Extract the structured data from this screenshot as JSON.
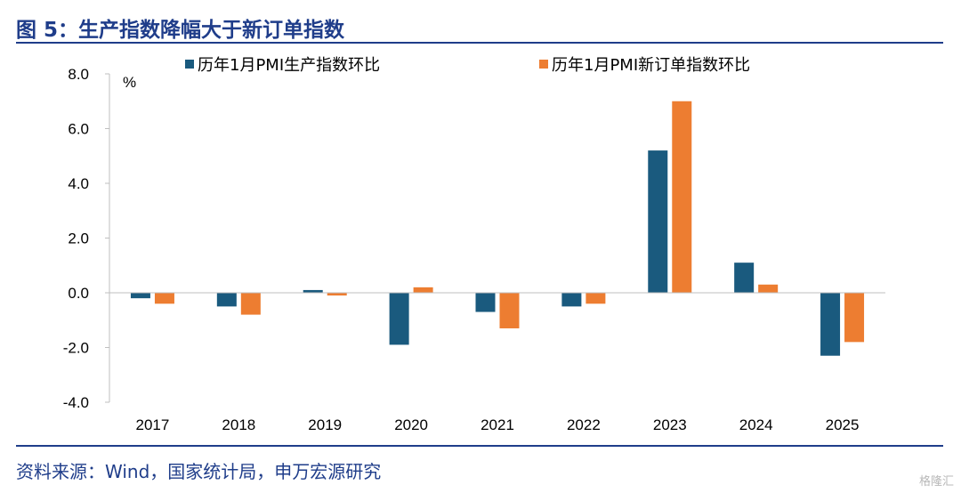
{
  "header": {
    "title": "图 5：生产指数降幅大于新订单指数"
  },
  "footer": {
    "source": "资料来源：Wind，国家统计局，申万宏源研究",
    "watermark": "格隆汇"
  },
  "chart_data": {
    "type": "bar",
    "categories": [
      "2017",
      "2018",
      "2019",
      "2020",
      "2021",
      "2022",
      "2023",
      "2024",
      "2025"
    ],
    "series": [
      {
        "name": "历年1月PMI生产指数环比",
        "color": "#1a5a7e",
        "values": [
          -0.2,
          -0.5,
          0.1,
          -1.9,
          -0.7,
          -0.5,
          5.2,
          1.1,
          -2.3
        ]
      },
      {
        "name": "历年1月PMI新订单指数环比",
        "color": "#ed7d31",
        "values": [
          -0.4,
          -0.8,
          -0.1,
          0.2,
          -1.3,
          -0.4,
          7.0,
          0.3,
          -1.8
        ]
      }
    ],
    "yunit": "%",
    "ylim": [
      -4.0,
      8.0
    ],
    "yticks": [
      "8.0",
      "6.0",
      "4.0",
      "2.0",
      "0.0",
      "-2.0",
      "-4.0"
    ],
    "grid": false,
    "legend": "top"
  }
}
